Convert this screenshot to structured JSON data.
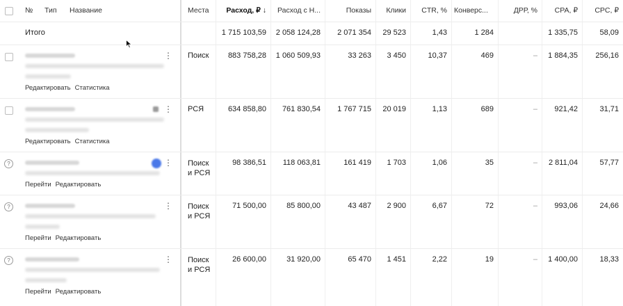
{
  "header": {
    "num": "№",
    "type": "Тип",
    "name": "Название",
    "places": "Места",
    "expense": "Расход, ₽",
    "sort_arrow": "↓",
    "expense_vat": "Расход с Н...",
    "impressions": "Показы",
    "clicks": "Клики",
    "ctr": "CTR, %",
    "conversions": "Конверс...",
    "drr": "ДРР, %",
    "cpa": "CPA, ₽",
    "cpc": "CPC, ₽"
  },
  "total": {
    "label": "Итого",
    "expense": "1 715 103,59",
    "expense_vat": "2 058 124,28",
    "impressions": "2 071 354",
    "clicks": "29 523",
    "ctr": "1,43",
    "conversions": "1 284",
    "cpa": "1 335,75",
    "cpc": "58,09"
  },
  "rows": [
    {
      "status": "checkbox",
      "places": [
        "Поиск"
      ],
      "expense": "883 758,28",
      "expense_vat": "1 060 509,93",
      "impressions": "33 263",
      "clicks": "3 450",
      "ctr": "10,37",
      "conversions": "469",
      "drr": "–",
      "cpa": "1 884,35",
      "cpc": "256,16",
      "actions": [
        "Редактировать",
        "Статистика"
      ]
    },
    {
      "status": "checkbox",
      "places": [
        "РСЯ"
      ],
      "expense": "634 858,80",
      "expense_vat": "761 830,54",
      "impressions": "1 767 715",
      "clicks": "20 019",
      "ctr": "1,13",
      "conversions": "689",
      "drr": "–",
      "cpa": "921,42",
      "cpc": "31,71",
      "actions": [
        "Редактировать",
        "Статистика"
      ]
    },
    {
      "status": "question",
      "places": [
        "Поиск",
        "и РСЯ"
      ],
      "expense": "98 386,51",
      "expense_vat": "118 063,81",
      "impressions": "161 419",
      "clicks": "1 703",
      "ctr": "1,06",
      "conversions": "35",
      "drr": "–",
      "cpa": "2 811,04",
      "cpc": "57,77",
      "actions": [
        "Перейти",
        "Редактировать"
      ]
    },
    {
      "status": "question",
      "places": [
        "Поиск",
        "и РСЯ"
      ],
      "expense": "71 500,00",
      "expense_vat": "85 800,00",
      "impressions": "43 487",
      "clicks": "2 900",
      "ctr": "6,67",
      "conversions": "72",
      "drr": "–",
      "cpa": "993,06",
      "cpc": "24,66",
      "actions": [
        "Перейти",
        "Редактировать"
      ]
    },
    {
      "status": "question",
      "places": [
        "Поиск",
        "и РСЯ"
      ],
      "expense": "26 600,00",
      "expense_vat": "31 920,00",
      "impressions": "65 470",
      "clicks": "1 451",
      "ctr": "2,22",
      "conversions": "19",
      "drr": "–",
      "cpa": "1 400,00",
      "cpc": "18,33",
      "actions": [
        "Перейти",
        "Редактировать"
      ]
    }
  ],
  "icons": {
    "checkbox": "checkbox-icon",
    "question": "question-circle-icon",
    "menu": "more-vertical-icon",
    "cursor": "mouse-pointer-icon"
  }
}
